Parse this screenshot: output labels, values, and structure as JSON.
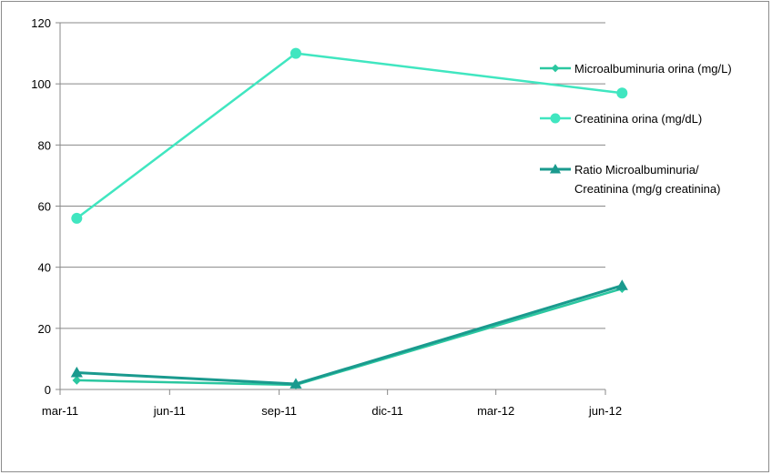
{
  "chart_data": {
    "type": "line",
    "title": "",
    "xlabel": "",
    "ylabel": "",
    "x_ticks": [
      "mar-11",
      "jun-11",
      "sep-11",
      "dic-11",
      "mar-12",
      "jun-12"
    ],
    "y_ticks": [
      "0",
      "20",
      "40",
      "60",
      "80",
      "100",
      "120"
    ],
    "ylim": [
      0,
      120
    ],
    "grid": "horizontal",
    "legend_position": "right",
    "series": [
      {
        "name": "Microalbuminuria orina (mg/L)",
        "marker": "diamond",
        "color": "#2BC7A0",
        "points": [
          {
            "x": "2011-03-15",
            "y": 3
          },
          {
            "x": "2011-09-15",
            "y": 1.5
          },
          {
            "x": "2012-06-15",
            "y": 33
          }
        ]
      },
      {
        "name": "Creatinina orina (mg/dL)",
        "marker": "circle",
        "color": "#40E6C0",
        "points": [
          {
            "x": "2011-03-15",
            "y": 56
          },
          {
            "x": "2011-09-15",
            "y": 110
          },
          {
            "x": "2012-06-15",
            "y": 97
          }
        ]
      },
      {
        "name": "Ratio Microalbuminuria/ Creatinina (mg/g creatinina)",
        "name_lines": [
          "Ratio Microalbuminuria/",
          "Creatinina (mg/g creatinina)"
        ],
        "marker": "triangle",
        "color": "#1A9A8E",
        "points": [
          {
            "x": "2011-03-15",
            "y": 5.5
          },
          {
            "x": "2011-09-15",
            "y": 1.8
          },
          {
            "x": "2012-06-15",
            "y": 34
          }
        ]
      }
    ]
  }
}
